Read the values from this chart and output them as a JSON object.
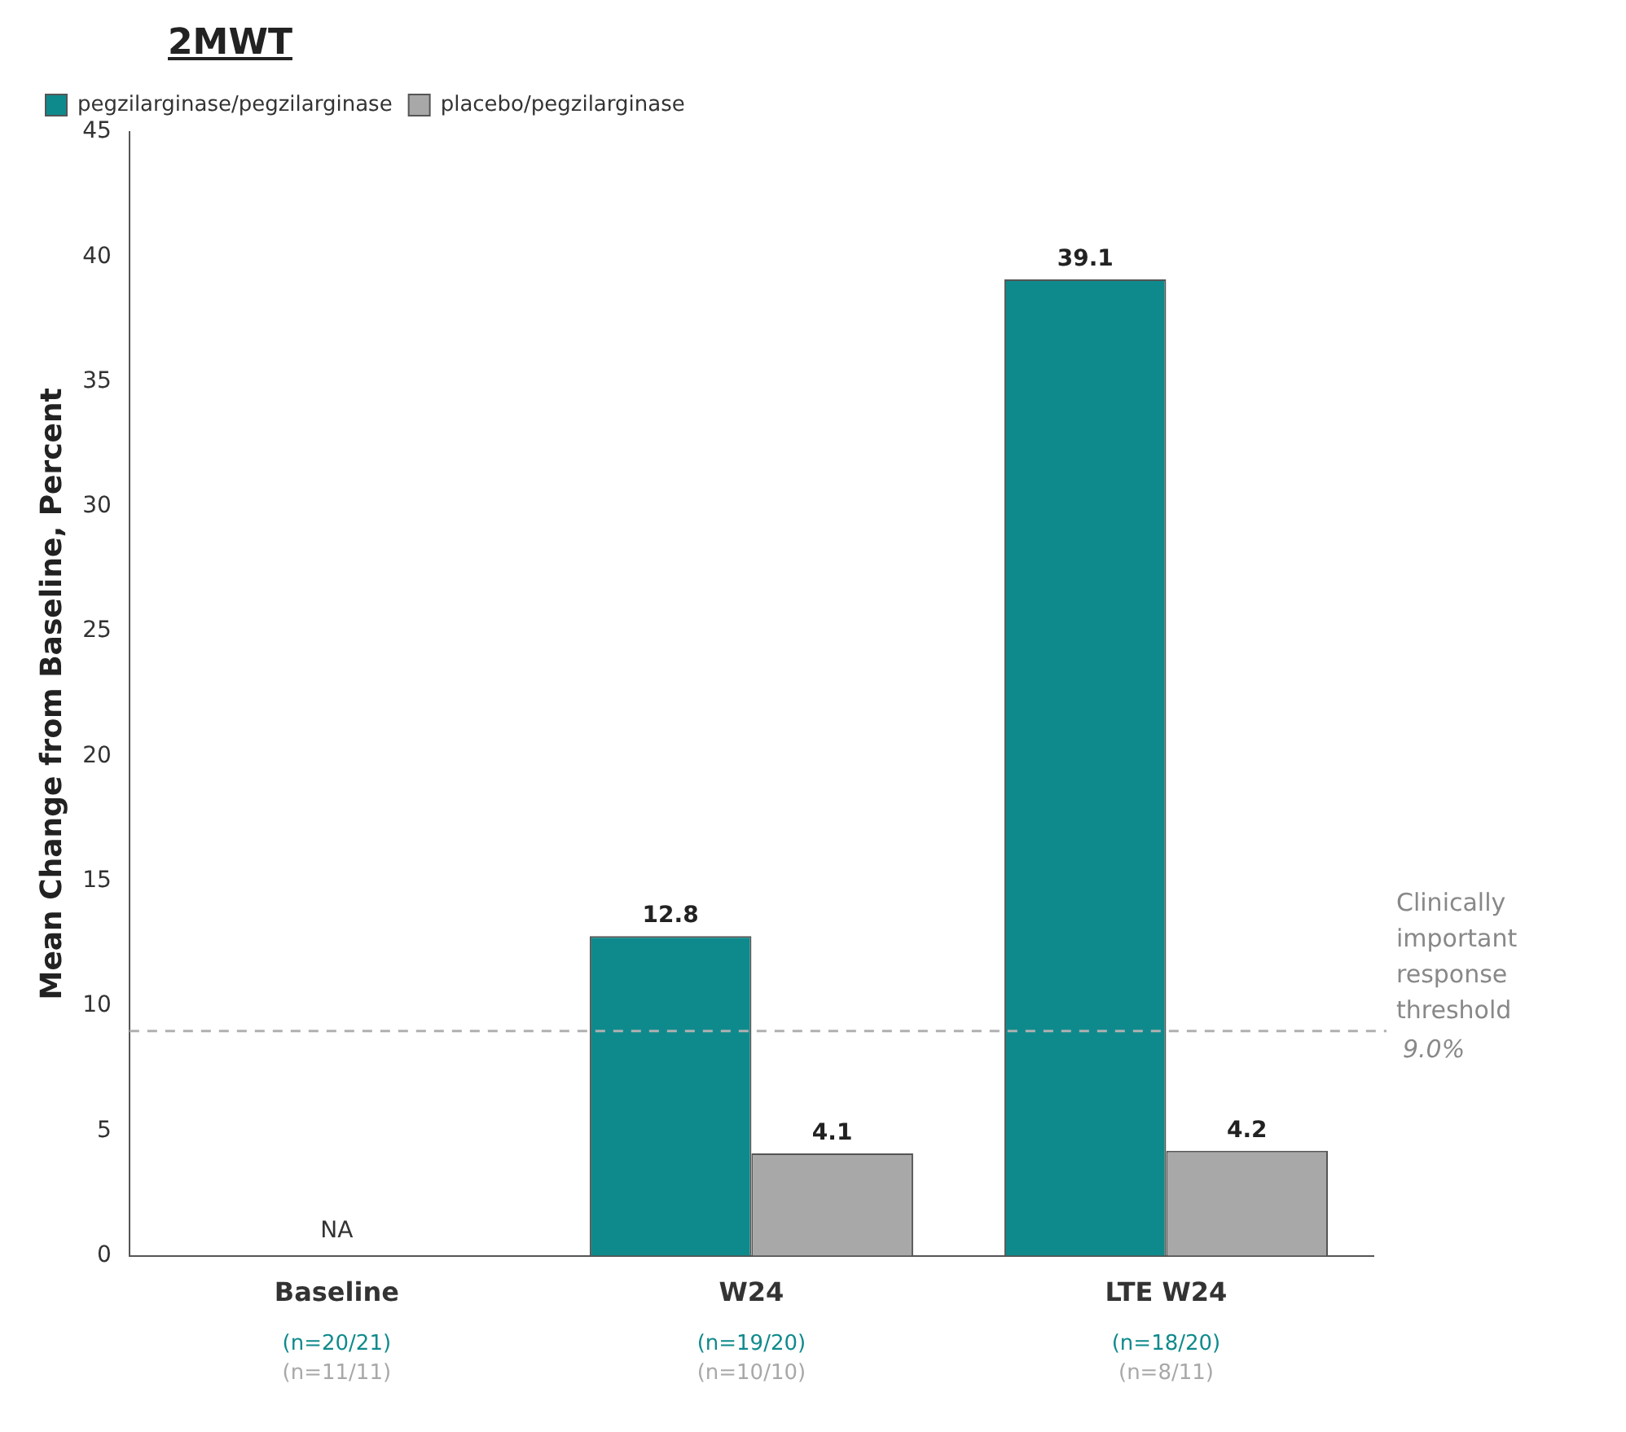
{
  "chart_data": {
    "type": "bar",
    "title": "2MWT",
    "ylabel": "Mean Change from Baseline, Percent",
    "categories": [
      "Baseline",
      "W24",
      "LTE W24"
    ],
    "series": [
      {
        "name": "pegzilarginase/pegzilarginase",
        "color": "#0f8a8c",
        "values": [
          null,
          12.8,
          39.1
        ]
      },
      {
        "name": "placebo/pegzilarginase",
        "color": "#a8a8a8",
        "values": [
          null,
          4.1,
          4.2
        ]
      }
    ],
    "ylim": [
      0,
      45
    ],
    "yticks": [
      0,
      5,
      10,
      15,
      20,
      25,
      30,
      35,
      40,
      45
    ],
    "grid": false,
    "legend": "top left",
    "data_labels": true,
    "ref_lines": [
      {
        "axis": "y",
        "value": 9,
        "label": "Clinically important response threshold 9.0%",
        "color": "#b0b0b0",
        "line_style": "dashed"
      }
    ],
    "annotations": [
      "NA",
      "(n=20/21)",
      "(n=11/11)",
      "(n=19/20)",
      "(n=10/10)",
      "(n=18/20)",
      "(n=8/11)"
    ]
  }
}
